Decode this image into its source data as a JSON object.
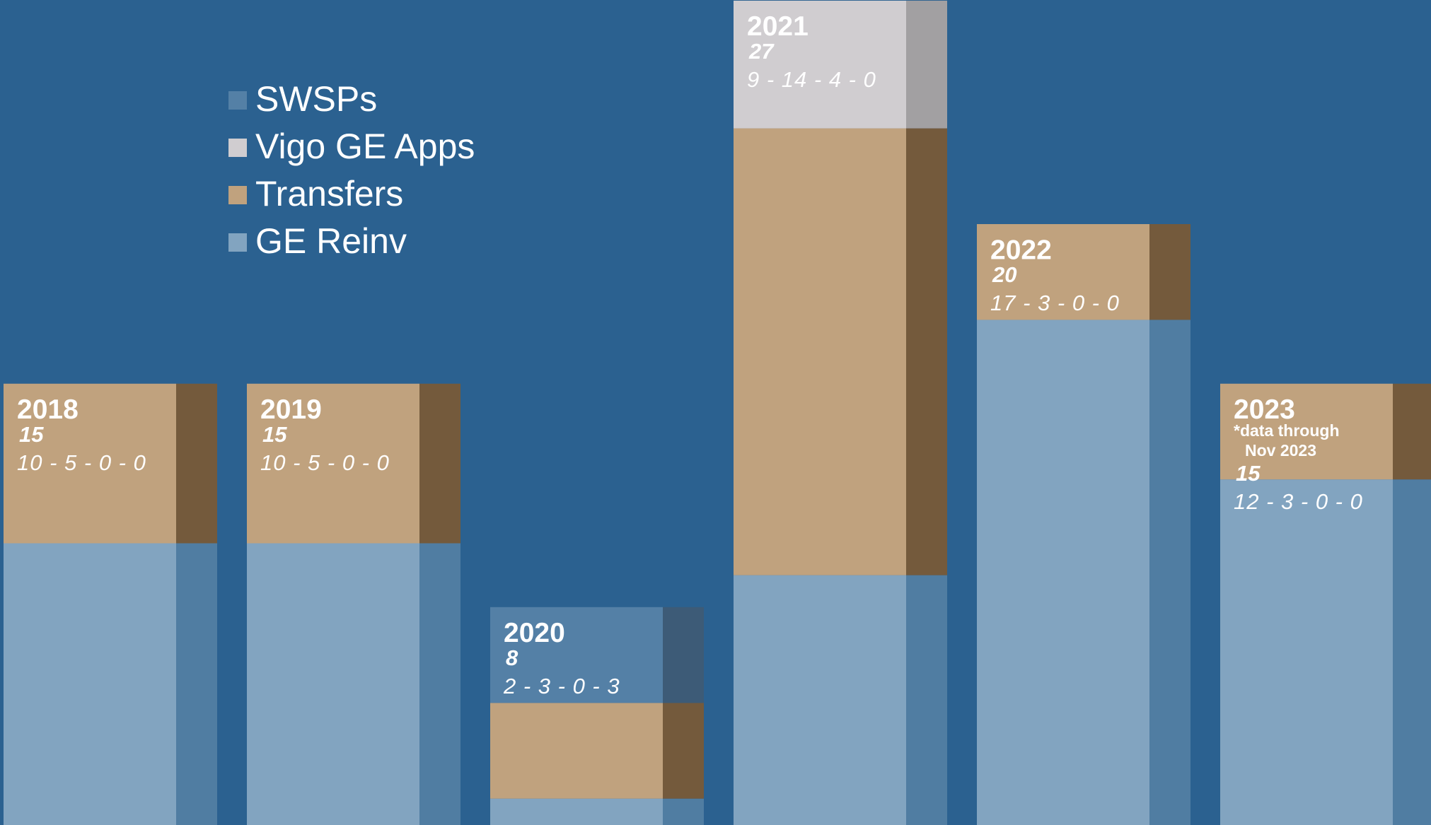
{
  "chart_data": {
    "type": "bar",
    "stacked": true,
    "categories": [
      "2018",
      "2019",
      "2020",
      "2021",
      "2022",
      "2023"
    ],
    "series": [
      {
        "name": "SWSPs",
        "color": "#5480a6",
        "side_color": "#3d5b77",
        "values": [
          0,
          0,
          3,
          0,
          0,
          0
        ]
      },
      {
        "name": "Vigo GE Apps",
        "color": "#d0cdd0",
        "side_color": "#a2a0a2",
        "values": [
          0,
          0,
          0,
          4,
          0,
          0
        ]
      },
      {
        "name": "Transfers",
        "color": "#c0a27e",
        "side_color": "#745a3c",
        "values": [
          5,
          5,
          3,
          14,
          3,
          3
        ]
      },
      {
        "name": "GE Reinv",
        "color": "#82a4c0",
        "side_color": "#507da2",
        "values": [
          10,
          10,
          2,
          9,
          17,
          12
        ]
      }
    ],
    "totals": [
      15,
      15,
      8,
      27,
      20,
      15
    ],
    "breakdown_labels": [
      "10 - 5 - 0 - 0",
      "10 - 5 - 0 - 0",
      "2 - 3 - 0 - 3",
      "9 - 14 - 4 - 0",
      "17 - 3 - 0 - 0",
      "12 - 3 - 0 - 0"
    ],
    "annotations": [
      null,
      null,
      null,
      null,
      null,
      [
        "*data through",
        "Nov 2023"
      ]
    ],
    "background": "#2b6190"
  }
}
